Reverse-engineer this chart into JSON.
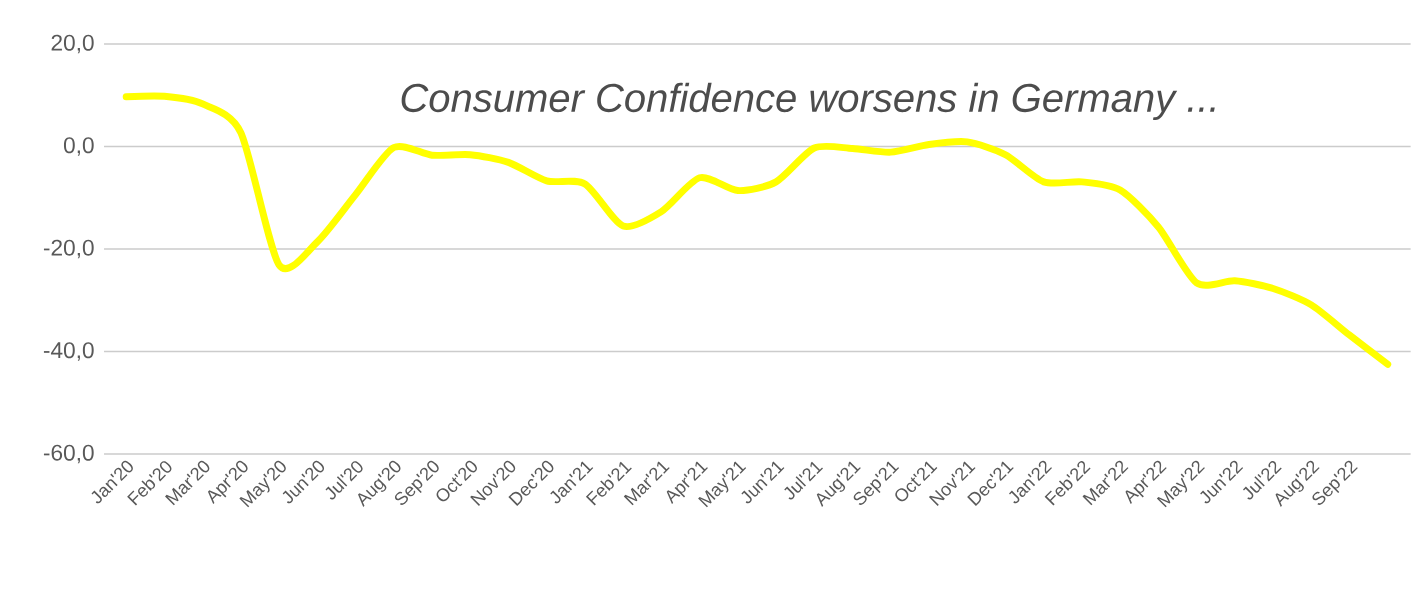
{
  "chart_data": {
    "type": "line",
    "title": "Consumer Confidence worsens in Germany  ...",
    "categories": [
      "Jan'20",
      "Feb'20",
      "Mar'20",
      "Apr'20",
      "May'20",
      "Jun'20",
      "Jul'20",
      "Aug'20",
      "Sep'20",
      "Oct'20",
      "Nov'20",
      "Dec'20",
      "Jan'21",
      "Feb'21",
      "Mar'21",
      "Apr'21",
      "May'21",
      "Jun'21",
      "Jul'21",
      "Aug'21",
      "Sep'21",
      "Oct'21",
      "Nov'21",
      "Dec'21",
      "Jan'22",
      "Feb'22",
      "Mar'22",
      "Apr'22",
      "May'22",
      "Jun'22",
      "Jul'22",
      "Aug'22",
      "Sep'22",
      null
    ],
    "values": [
      9.7,
      9.8,
      8.3,
      2.7,
      -23.1,
      -18.6,
      -9.4,
      -0.2,
      -1.7,
      -1.6,
      -3.1,
      -6.7,
      -7.3,
      -15.5,
      -12.7,
      -6.1,
      -8.6,
      -6.9,
      -0.3,
      -0.4,
      -1.1,
      0.4,
      0.9,
      -1.6,
      -6.9,
      -6.9,
      -8.5,
      -15.7,
      -26.6,
      -26.2,
      -27.7,
      -30.9,
      -36.8,
      -42.5
    ],
    "color": "#ffff00",
    "ylim": [
      -60,
      20
    ],
    "yticks": [
      {
        "value": -60,
        "label": "-60,0"
      },
      {
        "value": -40,
        "label": "-40,0"
      },
      {
        "value": -20,
        "label": "-20,0"
      },
      {
        "value": 0,
        "label": "0,0"
      },
      {
        "value": 20,
        "label": "20,0"
      }
    ],
    "grid": "y",
    "marker": "none",
    "line_style": "solid"
  }
}
